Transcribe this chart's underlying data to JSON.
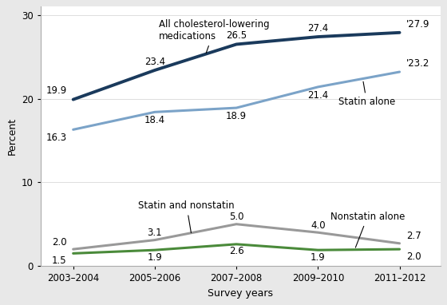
{
  "x_labels": [
    "2003–2004",
    "2005–2006",
    "2007–2008",
    "2009–2010",
    "2011–2012"
  ],
  "x_values": [
    0,
    1,
    2,
    3,
    4
  ],
  "series": {
    "all_cholesterol": {
      "values": [
        19.9,
        23.4,
        26.5,
        27.4,
        27.9
      ],
      "color": "#1a3a5c",
      "linewidth": 2.8
    },
    "statin_alone": {
      "values": [
        16.3,
        18.4,
        18.9,
        21.4,
        23.2
      ],
      "color": "#7ba3c8",
      "linewidth": 2.2
    },
    "statin_and_nonstatin": {
      "values": [
        2.0,
        3.1,
        5.0,
        4.0,
        2.7
      ],
      "color": "#999999",
      "linewidth": 2.2
    },
    "nonstatin_alone": {
      "values": [
        1.5,
        1.9,
        2.6,
        1.9,
        2.0
      ],
      "color": "#4a8a3a",
      "linewidth": 2.2
    }
  },
  "labels_all": [
    "19.9",
    "23.4",
    "26.5",
    "27.4",
    "'27.9"
  ],
  "labels_statin": [
    "16.3",
    "18.4",
    "18.9",
    "21.4",
    "'23.2"
  ],
  "labels_combo": [
    "2.0",
    "3.1",
    "5.0",
    "4.0",
    "2.7"
  ],
  "labels_nonst": [
    "1.5",
    "1.9",
    "2.6",
    "1.9",
    "2.0"
  ],
  "ylabel": "Percent",
  "xlabel": "Survey years",
  "ylim": [
    0,
    31
  ],
  "yticks": [
    0,
    10,
    20,
    30
  ],
  "bg_color": "#e8e8e8",
  "plot_bg_color": "#ffffff",
  "annotation_fontsize": 8.5,
  "label_fontsize": 8.5,
  "axis_fontsize": 9
}
